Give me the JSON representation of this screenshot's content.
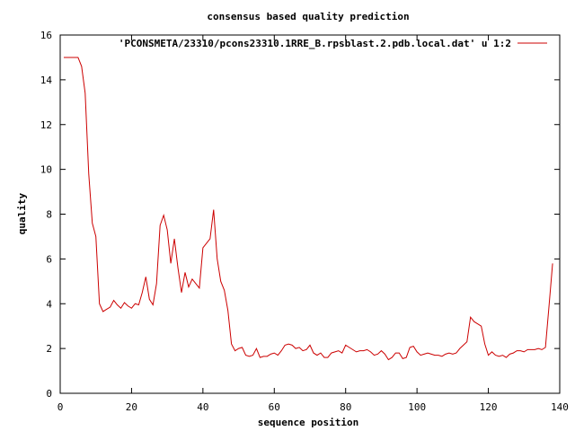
{
  "chart_data": {
    "type": "line",
    "title": "consensus based quality prediction",
    "xlabel": "sequence position",
    "ylabel": "quality",
    "xlim": [
      0,
      140
    ],
    "ylim": [
      0,
      16
    ],
    "x_ticks": [
      0,
      20,
      40,
      60,
      80,
      100,
      120,
      140
    ],
    "y_ticks": [
      0,
      2,
      4,
      6,
      8,
      10,
      12,
      14,
      16
    ],
    "x_tick_labels": [
      "0",
      "20",
      "40",
      "60",
      "80",
      "100",
      "120",
      "140"
    ],
    "y_tick_labels": [
      "0",
      "2",
      "4",
      "6",
      "8",
      "10",
      "12",
      "14",
      "16"
    ],
    "grid": false,
    "legend_position": "top-right",
    "series": [
      {
        "name": "'PCONSMETA/23310/pcons23310.1RRE_B.rpsblast.2.pdb.local.dat' u 1:2",
        "color": "#cc0000",
        "x": [
          1,
          2,
          3,
          4,
          5,
          6,
          7,
          8,
          9,
          10,
          11,
          12,
          13,
          14,
          15,
          16,
          17,
          18,
          19,
          20,
          21,
          22,
          23,
          24,
          25,
          26,
          27,
          28,
          29,
          30,
          31,
          32,
          33,
          34,
          35,
          36,
          37,
          38,
          39,
          40,
          41,
          42,
          43,
          44,
          45,
          46,
          47,
          48,
          49,
          50,
          51,
          52,
          53,
          54,
          55,
          56,
          57,
          58,
          59,
          60,
          61,
          62,
          63,
          64,
          65,
          66,
          67,
          68,
          69,
          70,
          71,
          72,
          73,
          74,
          75,
          76,
          77,
          78,
          79,
          80,
          81,
          82,
          83,
          84,
          85,
          86,
          87,
          88,
          89,
          90,
          91,
          92,
          93,
          94,
          95,
          96,
          97,
          98,
          99,
          100,
          101,
          102,
          103,
          104,
          105,
          106,
          107,
          108,
          109,
          110,
          111,
          112,
          113,
          114,
          115,
          116,
          117,
          118,
          119,
          120,
          121,
          122,
          123,
          124,
          125,
          126,
          127,
          128,
          129,
          130,
          131,
          132,
          133,
          134,
          135,
          136,
          137,
          138
        ],
        "y": [
          15.0,
          15.0,
          15.0,
          15.0,
          15.0,
          14.6,
          13.4,
          9.8,
          7.6,
          7.0,
          4.0,
          3.65,
          3.75,
          3.85,
          4.15,
          3.95,
          3.8,
          4.05,
          3.9,
          3.8,
          4.0,
          3.95,
          4.5,
          5.2,
          4.2,
          3.95,
          4.9,
          7.5,
          7.95,
          7.3,
          5.8,
          6.9,
          5.6,
          4.5,
          5.4,
          4.75,
          5.1,
          4.9,
          4.7,
          6.5,
          6.7,
          6.9,
          8.2,
          6.0,
          5.0,
          4.6,
          3.7,
          2.2,
          1.9,
          2.0,
          2.05,
          1.7,
          1.65,
          1.7,
          2.0,
          1.6,
          1.65,
          1.65,
          1.75,
          1.8,
          1.7,
          1.9,
          2.15,
          2.2,
          2.15,
          2.0,
          2.05,
          1.9,
          1.95,
          2.15,
          1.8,
          1.7,
          1.8,
          1.6,
          1.6,
          1.8,
          1.85,
          1.9,
          1.8,
          2.15,
          2.05,
          1.95,
          1.85,
          1.9,
          1.9,
          1.95,
          1.85,
          1.7,
          1.75,
          1.9,
          1.75,
          1.5,
          1.6,
          1.8,
          1.8,
          1.55,
          1.6,
          2.05,
          2.1,
          1.85,
          1.7,
          1.75,
          1.8,
          1.75,
          1.7,
          1.7,
          1.65,
          1.75,
          1.8,
          1.75,
          1.8,
          2.0,
          2.15,
          2.3,
          3.4,
          3.2,
          3.1,
          3.0,
          2.2,
          1.7,
          1.85,
          1.7,
          1.65,
          1.7,
          1.6,
          1.75,
          1.8,
          1.9,
          1.9,
          1.85,
          1.95,
          1.95,
          1.95,
          2.0,
          1.95,
          2.05,
          3.9,
          5.8
        ]
      }
    ]
  }
}
